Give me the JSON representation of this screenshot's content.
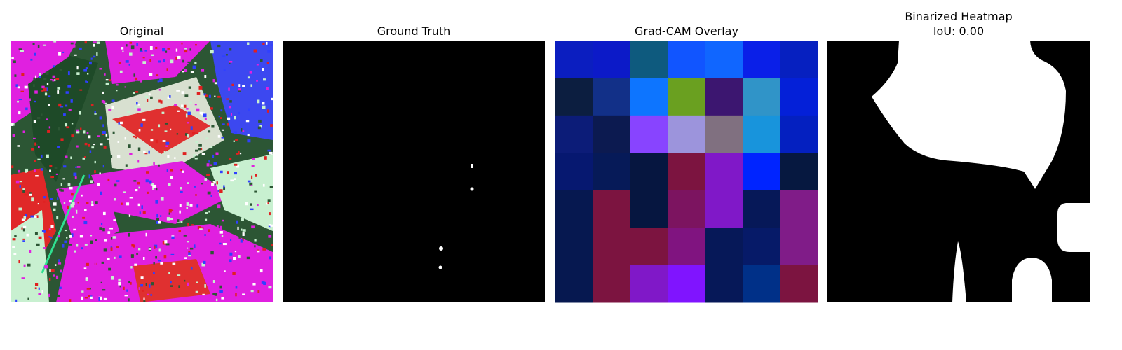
{
  "panels": [
    {
      "title": [
        "Original"
      ]
    },
    {
      "title": [
        "Ground Truth"
      ]
    },
    {
      "title": [
        "Grad-CAM Overlay"
      ]
    },
    {
      "title": [
        "Binarized Heatmap",
        "IoU: 0.00"
      ]
    }
  ]
}
